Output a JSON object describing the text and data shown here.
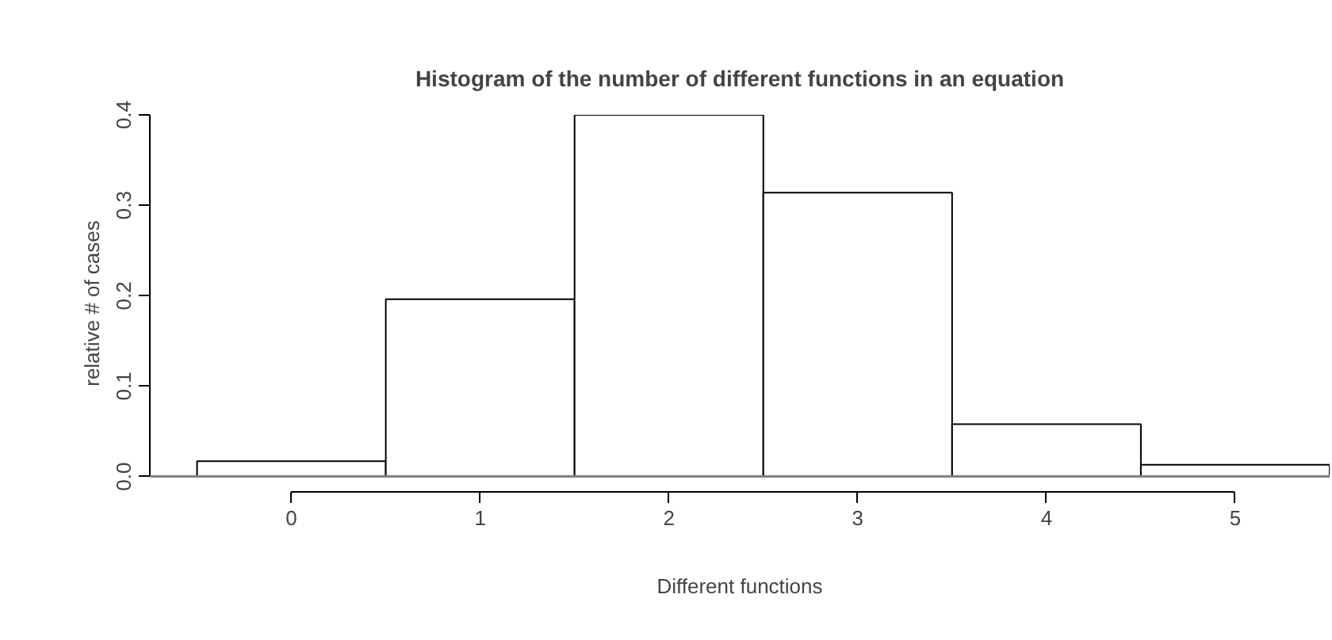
{
  "chart_data": {
    "type": "histogram",
    "title": "Histogram of the number of different functions in an equation",
    "xlabel": "Different functions",
    "ylabel": "relative # of cases",
    "bins": [
      -0.5,
      0.5,
      1.5,
      2.5,
      3.5,
      4.5,
      5.5
    ],
    "values": [
      0.017,
      0.196,
      0.4,
      0.314,
      0.058,
      0.013
    ],
    "color": "#ffffff",
    "xlim": [
      -0.75,
      5.5
    ],
    "xticks": [
      0,
      1,
      2,
      3,
      4,
      5
    ],
    "ylim": [
      -0.017,
      0.4
    ],
    "yticks": [
      {
        "value": 0,
        "label": "0.0"
      },
      0.1,
      0.2,
      0.3,
      0.4
    ],
    "ref_lines": [
      {
        "axis": "y",
        "value": 0,
        "color": "#808080"
      }
    ],
    "grid": false
  }
}
